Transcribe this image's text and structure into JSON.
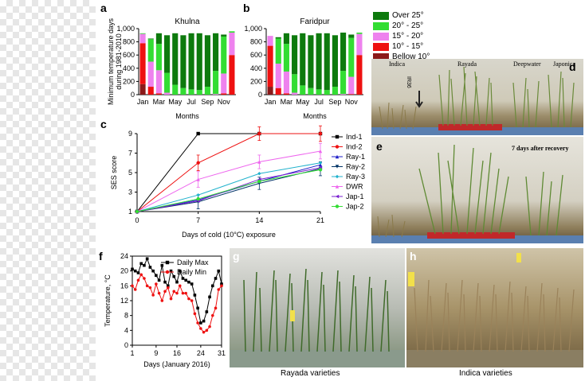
{
  "panels": {
    "a": "a",
    "b": "b",
    "c": "c",
    "d": "d",
    "e": "e",
    "f": "f",
    "g": "g",
    "h": "h"
  },
  "legend_ab": [
    {
      "label": "Over 25°",
      "color": "#0d7a0d"
    },
    {
      "label": "20° - 25°",
      "color": "#33dd33"
    },
    {
      "label": "15° - 20°",
      "color": "#ee82ee"
    },
    {
      "label": "10° - 15°",
      "color": "#ee1111"
    },
    {
      "label": "Bellow 10°",
      "color": "#8b1a1a"
    }
  ],
  "photo_labels": {
    "d_indica": "Indica",
    "d_rayada": "Rayada",
    "d_deepwater": "Deepwater",
    "d_japonica": "Japonica",
    "d_ir36": "IR36",
    "e_recovery": "7 days after recovery",
    "g_caption": "Rayada varieties",
    "h_caption": "Indica varieties"
  },
  "chart_data": [
    {
      "id": "a",
      "type": "bar",
      "title": "Khulna",
      "ylabel": "Minimum temperature days during 1981-2010",
      "xlabel": "Months",
      "categories": [
        "Jan",
        "Feb",
        "Mar",
        "Apr",
        "May",
        "Jun",
        "Jul",
        "Aug",
        "Sep",
        "Oct",
        "Nov",
        "Dec"
      ],
      "tick_labels": [
        "Jan",
        "Mar",
        "May",
        "Jul",
        "Sep",
        "Nov"
      ],
      "ylim": [
        0,
        1000
      ],
      "yticks": [
        "0",
        "200",
        "400",
        "600",
        "800",
        "1,000"
      ],
      "series": [
        {
          "name": "Bellow 10°",
          "values": [
            160,
            0,
            0,
            0,
            0,
            0,
            0,
            0,
            0,
            0,
            0,
            0
          ]
        },
        {
          "name": "10° - 15°",
          "values": [
            620,
            120,
            20,
            0,
            0,
            0,
            0,
            0,
            0,
            0,
            20,
            600
          ]
        },
        {
          "name": "15° - 20°",
          "values": [
            140,
            380,
            350,
            30,
            0,
            0,
            0,
            0,
            0,
            10,
            300,
            340
          ]
        },
        {
          "name": "20° - 25°",
          "values": [
            10,
            340,
            400,
            300,
            150,
            100,
            80,
            70,
            120,
            350,
            560,
            20
          ]
        },
        {
          "name": "Over 25°",
          "values": [
            0,
            10,
            160,
            570,
            780,
            800,
            850,
            860,
            780,
            570,
            30,
            0
          ]
        }
      ]
    },
    {
      "id": "b",
      "type": "bar",
      "title": "Faridpur",
      "ylabel": "",
      "xlabel": "Months",
      "categories": [
        "Jan",
        "Feb",
        "Mar",
        "Apr",
        "May",
        "Jun",
        "Jul",
        "Aug",
        "Sep",
        "Oct",
        "Nov",
        "Dec"
      ],
      "tick_labels": [
        "Jan",
        "Mar",
        "May",
        "Jul",
        "Sep",
        "Nov"
      ],
      "ylim": [
        0,
        1000
      ],
      "yticks": [
        "0",
        "200",
        "400",
        "600",
        "800",
        "1,000"
      ],
      "series": [
        {
          "name": "Bellow 10°",
          "values": [
            120,
            0,
            0,
            0,
            0,
            0,
            0,
            0,
            0,
            0,
            0,
            0
          ]
        },
        {
          "name": "10° - 15°",
          "values": [
            620,
            100,
            20,
            0,
            0,
            0,
            0,
            0,
            0,
            0,
            10,
            600
          ]
        },
        {
          "name": "15° - 20°",
          "values": [
            150,
            370,
            330,
            30,
            0,
            0,
            0,
            0,
            0,
            10,
            260,
            320
          ]
        },
        {
          "name": "20° - 25°",
          "values": [
            0,
            380,
            420,
            280,
            140,
            100,
            80,
            70,
            120,
            350,
            590,
            20
          ]
        },
        {
          "name": "Over 25°",
          "values": [
            0,
            20,
            160,
            590,
            790,
            800,
            850,
            860,
            780,
            580,
            50,
            0
          ]
        }
      ]
    },
    {
      "id": "c",
      "type": "line",
      "ylabel": "SES score",
      "xlabel": "Days of cold (10°C) exposure",
      "x": [
        0,
        7,
        14,
        21
      ],
      "xticks": [
        "0",
        "7",
        "14",
        "21"
      ],
      "ylim": [
        1,
        9
      ],
      "yticks": [
        "1",
        "3",
        "5",
        "7",
        "9"
      ],
      "series": [
        {
          "name": "Ind-1",
          "color": "#000000",
          "marker": "square",
          "values": [
            1,
            9,
            9,
            9
          ]
        },
        {
          "name": "Ind-2",
          "color": "#ee1111",
          "marker": "circle",
          "values": [
            1,
            6,
            9,
            9
          ]
        },
        {
          "name": "Ray-1",
          "color": "#1e1ec8",
          "marker": "triangle",
          "values": [
            1,
            2.2,
            4.1,
            5.8
          ]
        },
        {
          "name": "Ray-2",
          "color": "#003366",
          "marker": "tridown",
          "values": [
            1,
            2,
            3.9,
            5.4
          ]
        },
        {
          "name": "Ray-3",
          "color": "#20b2cc",
          "marker": "diamond",
          "values": [
            1,
            2.7,
            4.9,
            6
          ]
        },
        {
          "name": "DWR",
          "color": "#ee66ee",
          "marker": "tri",
          "values": [
            1,
            4.3,
            6.1,
            7.2
          ]
        },
        {
          "name": "Jap-1",
          "color": "#7a1fd0",
          "marker": "left",
          "values": [
            1,
            2.1,
            4.3,
            5.5
          ]
        },
        {
          "name": "Jap-2",
          "color": "#33dd33",
          "marker": "circle",
          "values": [
            1,
            2.3,
            4.1,
            5.3
          ]
        }
      ],
      "errors": [
        0,
        0.8,
        0.7,
        0.8
      ]
    },
    {
      "id": "f",
      "type": "line",
      "ylabel": "Temperature, °C",
      "xlabel": "Days (January 2016)",
      "x": [
        1,
        2,
        3,
        4,
        5,
        6,
        7,
        8,
        9,
        10,
        11,
        12,
        13,
        14,
        15,
        16,
        17,
        18,
        19,
        20,
        21,
        22,
        23,
        24,
        25,
        26,
        27,
        28,
        29,
        30,
        31
      ],
      "xticks": [
        "1",
        "9",
        "16",
        "24",
        "31"
      ],
      "ylim": [
        0,
        24
      ],
      "yticks": [
        "0",
        "4",
        "8",
        "12",
        "16",
        "20",
        "24"
      ],
      "series": [
        {
          "name": "Daily Max",
          "color": "#000000",
          "marker": "square",
          "values": [
            20.5,
            20,
            19.5,
            22,
            21.5,
            23.3,
            21,
            20,
            18.8,
            17.5,
            21.5,
            17,
            16,
            20,
            18.5,
            17,
            20,
            18,
            17.5,
            17,
            16.5,
            13.5,
            10,
            6,
            6.5,
            9,
            13,
            16,
            18,
            20,
            16.5
          ]
        },
        {
          "name": "Daily Min",
          "color": "#ee1111",
          "marker": "circle",
          "values": [
            16,
            15,
            17.5,
            19,
            18,
            16,
            15.5,
            13.5,
            16.5,
            14,
            12,
            14.5,
            15.5,
            12.5,
            14.5,
            14,
            16,
            14,
            14,
            12.5,
            12,
            8.5,
            6,
            4.5,
            3.5,
            4,
            5,
            8,
            10,
            15,
            16
          ]
        }
      ]
    }
  ]
}
